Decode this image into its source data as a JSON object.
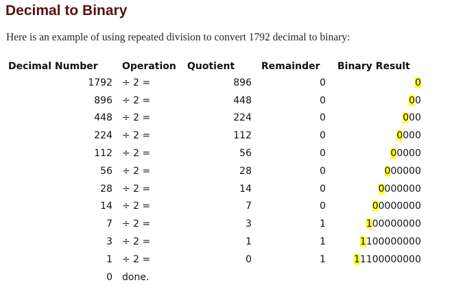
{
  "page": {
    "title": "Decimal to Binary",
    "intro": "Here is an example of using repeated division to convert 1792 decimal to binary:"
  },
  "colors": {
    "title": "#5a1010",
    "highlight": "#ffff33"
  },
  "table": {
    "headers": {
      "decimal": "Decimal Number",
      "operation": "Operation",
      "quotient": "Quotient",
      "remainder": "Remainder",
      "binary": "Binary Result"
    },
    "rows": [
      {
        "decimal": "1792",
        "operation": "÷ 2 =",
        "quotient": "896",
        "remainder": "0",
        "binary_new": "0",
        "binary_rest": ""
      },
      {
        "decimal": "896",
        "operation": "÷ 2 =",
        "quotient": "448",
        "remainder": "0",
        "binary_new": "0",
        "binary_rest": "0"
      },
      {
        "decimal": "448",
        "operation": "÷ 2 =",
        "quotient": "224",
        "remainder": "0",
        "binary_new": "0",
        "binary_rest": "00"
      },
      {
        "decimal": "224",
        "operation": "÷ 2 =",
        "quotient": "112",
        "remainder": "0",
        "binary_new": "0",
        "binary_rest": "000"
      },
      {
        "decimal": "112",
        "operation": "÷ 2 =",
        "quotient": "56",
        "remainder": "0",
        "binary_new": "0",
        "binary_rest": "0000"
      },
      {
        "decimal": "56",
        "operation": "÷ 2 =",
        "quotient": "28",
        "remainder": "0",
        "binary_new": "0",
        "binary_rest": "00000"
      },
      {
        "decimal": "28",
        "operation": "÷ 2 =",
        "quotient": "14",
        "remainder": "0",
        "binary_new": "0",
        "binary_rest": "000000"
      },
      {
        "decimal": "14",
        "operation": "÷ 2 =",
        "quotient": "7",
        "remainder": "0",
        "binary_new": "0",
        "binary_rest": "0000000"
      },
      {
        "decimal": "7",
        "operation": "÷ 2 =",
        "quotient": "3",
        "remainder": "1",
        "binary_new": "1",
        "binary_rest": "00000000"
      },
      {
        "decimal": "3",
        "operation": "÷ 2 =",
        "quotient": "1",
        "remainder": "1",
        "binary_new": "1",
        "binary_rest": "100000000"
      },
      {
        "decimal": "1",
        "operation": "÷ 2 =",
        "quotient": "0",
        "remainder": "1",
        "binary_new": "1",
        "binary_rest": "1100000000"
      },
      {
        "decimal": "0",
        "operation": "done.",
        "quotient": "",
        "remainder": "",
        "binary_new": "",
        "binary_rest": ""
      }
    ]
  }
}
